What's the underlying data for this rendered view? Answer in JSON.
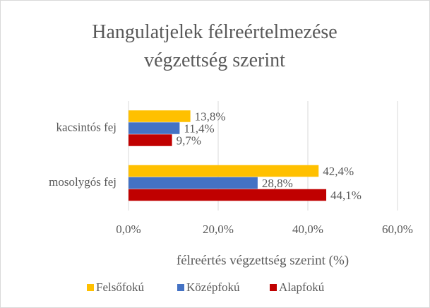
{
  "chart_data": {
    "type": "hbar",
    "title": "Hangulatjelek félreértelmezése végzettség szerint",
    "x_label": "félreértés végzettség szerint (%)",
    "categories": [
      "kacsintós fej",
      "mosolygós fej"
    ],
    "series": [
      {
        "name": "Felsőfokú",
        "color": "#FFC000",
        "values": [
          13.8,
          42.4
        ],
        "value_labels": [
          "13,8%",
          "42,4%"
        ]
      },
      {
        "name": "Középfokú",
        "color": "#4472C4",
        "values": [
          11.4,
          28.8
        ],
        "value_labels": [
          "11,4%",
          "28,8%"
        ]
      },
      {
        "name": "Alapfokú",
        "color": "#C00000",
        "values": [
          9.7,
          44.1
        ],
        "value_labels": [
          "9,7%",
          "44,1%"
        ]
      }
    ],
    "xlim": [
      0,
      60
    ],
    "xticks": [
      {
        "value": 0,
        "label": "0,0%"
      },
      {
        "value": 20,
        "label": "20,0%"
      },
      {
        "value": 40,
        "label": "40,0%"
      },
      {
        "value": 60,
        "label": "60,0%"
      }
    ],
    "grid": true,
    "legend": "bottom"
  }
}
